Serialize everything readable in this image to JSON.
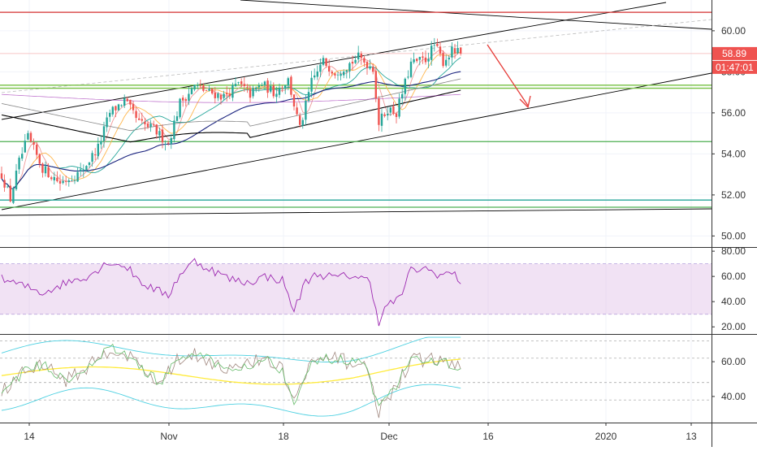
{
  "colors": {
    "up": "#26a69a",
    "down": "#ef5350",
    "ma_fast": "#ef9a9a",
    "ma_mid": "#26a69a",
    "ma_slow": "#1a237e",
    "ma_long": "#000000",
    "ma_purple": "#9c27b0",
    "resistance": "#d32f2f",
    "support": "#4caf50",
    "support_teal": "#26a69a",
    "channel": "#000000",
    "rsi_line": "#9c27b0",
    "rsi_band": "#e1bee7",
    "stoch_yellow": "#ffeb3b",
    "stoch_cyan": "#4dd0e1",
    "price_label_bg": "#ef5350",
    "axis_text": "#333333"
  },
  "chart_data": [
    {
      "type": "candlestick",
      "panel": "price",
      "ylim": [
        49.5,
        61.5
      ],
      "y_ticks": [
        "50.00",
        "52.00",
        "54.00",
        "56.00",
        "58.00",
        "60.00"
      ],
      "x_tick_labels": [
        "14",
        "Nov",
        "18",
        "Dec",
        "16",
        "2020",
        "13"
      ],
      "last_price_label": "58.89",
      "countdown_label": "01:47:01",
      "horizontal_levels": [
        {
          "name": "resistance",
          "value": 60.9,
          "color": "#d32f2f"
        },
        {
          "name": "support-upper",
          "value": 57.35,
          "color": "#76c043"
        },
        {
          "name": "support-upper-2",
          "value": 57.2,
          "color": "#76c043"
        },
        {
          "name": "support-mid",
          "value": 54.6,
          "color": "#4caf50"
        },
        {
          "name": "support-low-teal",
          "value": 51.75,
          "color": "#26a69a"
        },
        {
          "name": "support-low",
          "value": 51.4,
          "color": "#4caf50"
        }
      ],
      "trend": "ascending channel",
      "annotation": "down arrow",
      "series": [
        {
          "name": "ohlc",
          "values": []
        }
      ]
    },
    {
      "type": "line",
      "panel": "rsi",
      "ylim": [
        15,
        82
      ],
      "y_ticks": [
        "20.00",
        "40.00",
        "60.00",
        "80.00"
      ],
      "band": [
        30,
        70
      ]
    },
    {
      "type": "line",
      "panel": "stochastic",
      "ylim": [
        25,
        75
      ],
      "y_ticks": [
        "40.00",
        "60.00"
      ]
    }
  ]
}
